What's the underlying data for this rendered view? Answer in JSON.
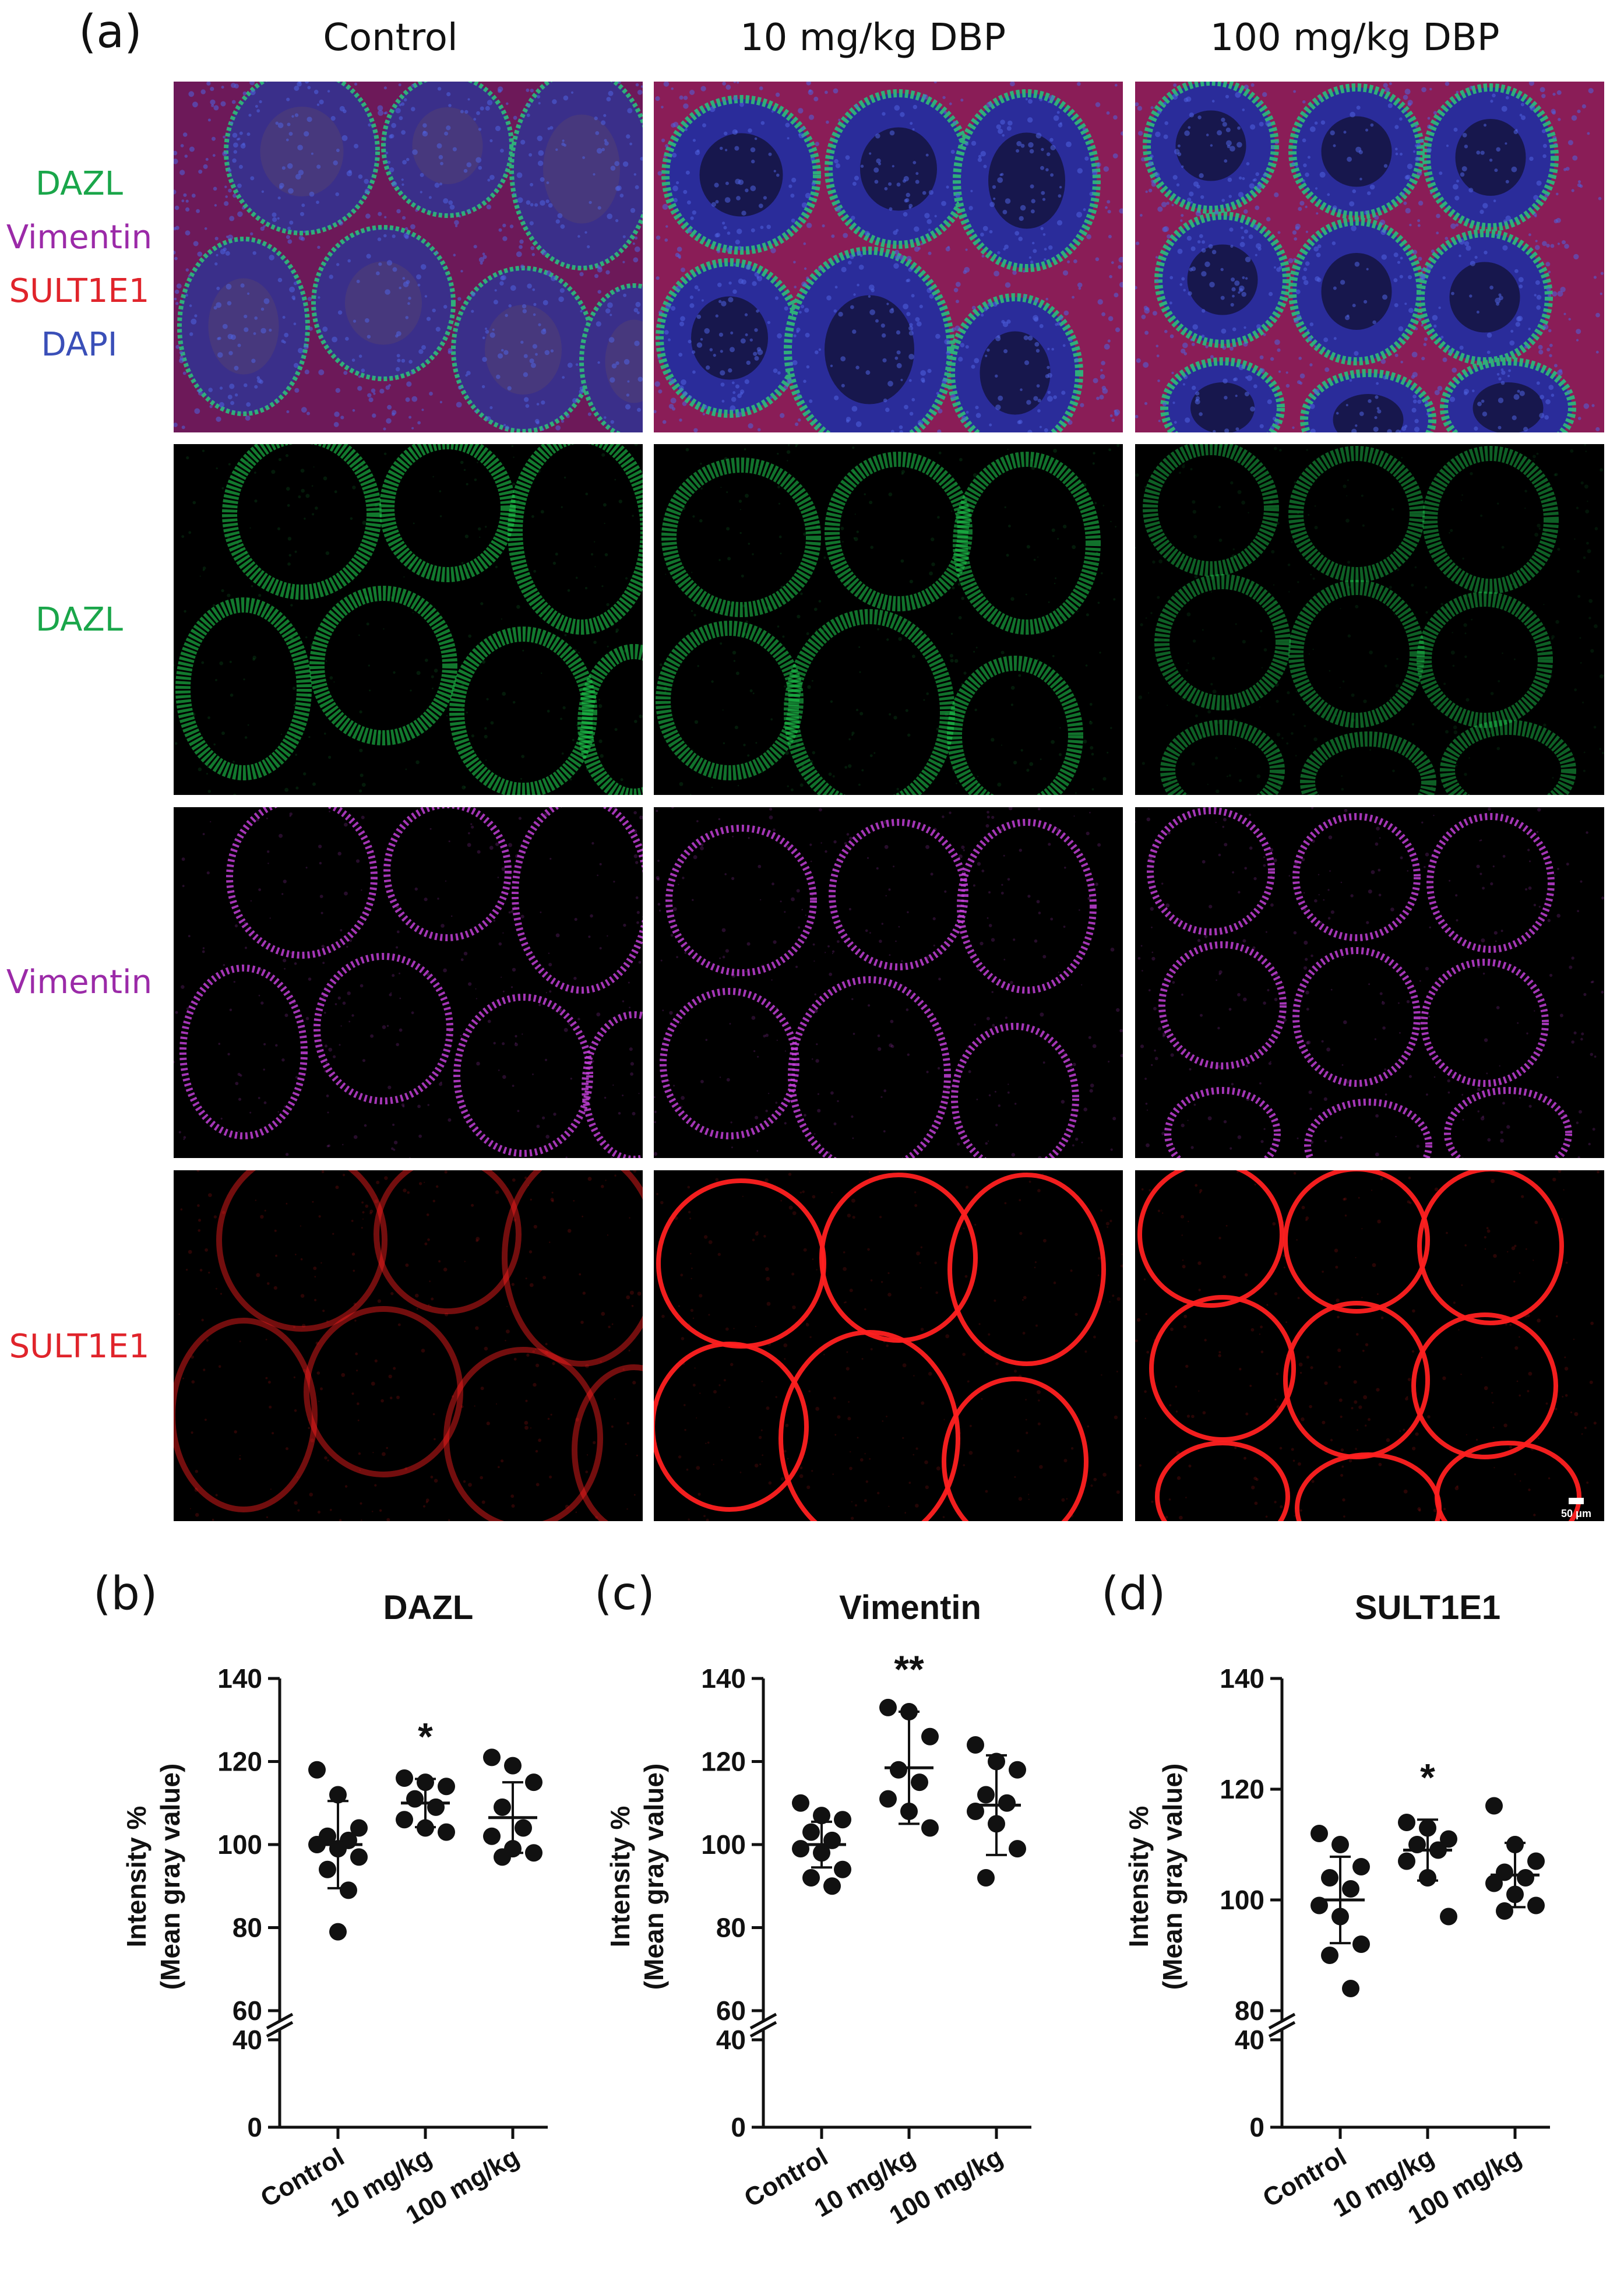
{
  "figure": {
    "panel_a_letter": "(a)",
    "columns": [
      "Control",
      "10 mg/kg DBP",
      "100 mg/kg DBP"
    ],
    "merge_labels": [
      {
        "text": "DAZL",
        "color": "#1aa64a"
      },
      {
        "text": "Vimentin",
        "color": "#9b2aa8"
      },
      {
        "text": "SULT1E1",
        "color": "#e0242b"
      },
      {
        "text": "DAPI",
        "color": "#3a4fb8"
      }
    ],
    "rows": [
      {
        "label": "DAZL",
        "color": "#1aa64a",
        "channel": "green"
      },
      {
        "label": "Vimentin",
        "color": "#9b2aa8",
        "channel": "magenta"
      },
      {
        "label": "SULT1E1",
        "color": "#e0242b",
        "channel": "red"
      }
    ],
    "scale_bar": "50 μm"
  },
  "chart_data": [
    {
      "type": "scatter",
      "panel": "(b)",
      "title": "DAZL",
      "ylabel_line1": "Intensity %",
      "ylabel_line2": "(Mean gray value)",
      "categories": [
        "Control",
        "10 mg/kg",
        "100 mg/kg"
      ],
      "yticks_upper": [
        60,
        80,
        100,
        120,
        140
      ],
      "yticks_lower": [
        0,
        40
      ],
      "upper_range": [
        60,
        140
      ],
      "lower_range": [
        0,
        40
      ],
      "significance": [
        "",
        "*",
        ""
      ],
      "groups": [
        {
          "name": "Control",
          "mean": 100,
          "sd": 10.5,
          "points": [
            118,
            112,
            104,
            102,
            101,
            100,
            99,
            97,
            94,
            89,
            79
          ]
        },
        {
          "name": "10 mg/kg",
          "mean": 110,
          "sd": 5.8,
          "points": [
            116,
            115,
            114,
            111,
            109,
            106,
            104,
            103
          ]
        },
        {
          "name": "100 mg/kg",
          "mean": 106.5,
          "sd": 8.5,
          "points": [
            121,
            119,
            115,
            109,
            104,
            102,
            99,
            98,
            97
          ]
        }
      ]
    },
    {
      "type": "scatter",
      "panel": "(c)",
      "title": "Vimentin",
      "ylabel_line1": "Intensity %",
      "ylabel_line2": "(Mean gray value)",
      "categories": [
        "Control",
        "10 mg/kg",
        "100 mg/kg"
      ],
      "yticks_upper": [
        60,
        80,
        100,
        120,
        140
      ],
      "yticks_lower": [
        0,
        40
      ],
      "upper_range": [
        60,
        140
      ],
      "lower_range": [
        0,
        40
      ],
      "significance": [
        "",
        "**",
        ""
      ],
      "groups": [
        {
          "name": "Control",
          "mean": 100,
          "sd": 5.5,
          "points": [
            110,
            107,
            106,
            103,
            101,
            99,
            98,
            94,
            92,
            90
          ]
        },
        {
          "name": "10 mg/kg",
          "mean": 118.5,
          "sd": 13.5,
          "points": [
            133,
            132,
            126,
            118,
            115,
            111,
            108,
            104
          ]
        },
        {
          "name": "100 mg/kg",
          "mean": 109.5,
          "sd": 12,
          "points": [
            124,
            120,
            118,
            112,
            110,
            108,
            105,
            99,
            92
          ]
        }
      ]
    },
    {
      "type": "scatter",
      "panel": "(d)",
      "title": "SULT1E1",
      "ylabel_line1": "Intensity %",
      "ylabel_line2": "(Mean gray value)",
      "categories": [
        "Control",
        "10 mg/kg",
        "100 mg/kg"
      ],
      "yticks_upper": [
        80,
        100,
        120,
        140
      ],
      "yticks_lower": [
        0,
        40
      ],
      "upper_range": [
        80,
        140
      ],
      "lower_range": [
        0,
        40
      ],
      "significance": [
        "",
        "*",
        ""
      ],
      "groups": [
        {
          "name": "Control",
          "mean": 100,
          "sd": 7.8,
          "points": [
            112,
            110,
            106,
            104,
            102,
            99,
            97,
            92,
            90,
            84
          ]
        },
        {
          "name": "10 mg/kg",
          "mean": 109,
          "sd": 5.5,
          "points": [
            114,
            113,
            111,
            110,
            109,
            107,
            104,
            97
          ]
        },
        {
          "name": "100 mg/kg",
          "mean": 104.5,
          "sd": 5.8,
          "points": [
            117,
            110,
            107,
            105,
            104,
            103,
            101,
            99,
            98
          ]
        }
      ]
    }
  ]
}
